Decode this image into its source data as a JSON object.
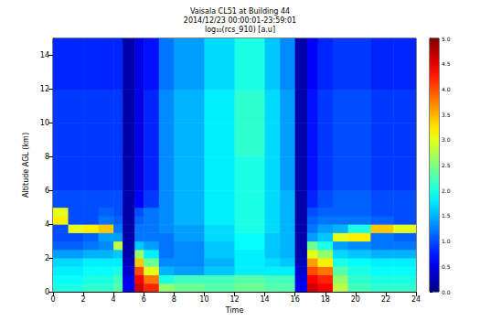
{
  "chart_data": {
    "type": "heatmap",
    "title": "Vaisala CL51 at Building 44",
    "subtitle": [
      "2014/12/23 00:00:01-23:59:01",
      "log₁₀(rcs_910) [a.u]"
    ],
    "xlabel": "Time",
    "ylabel": "Altitude AGL (km)",
    "xlim": [
      0,
      24
    ],
    "xticks": [
      0,
      2,
      4,
      6,
      8,
      10,
      12,
      14,
      16,
      18,
      20,
      22,
      24
    ],
    "ylim": [
      0,
      15
    ],
    "yticks": [
      0,
      2,
      4,
      6,
      8,
      10,
      12,
      14
    ],
    "grid": false,
    "x_edges": [
      0,
      1,
      2,
      3,
      4,
      4.6,
      5.4,
      6,
      7,
      8,
      10,
      12,
      14,
      15,
      16,
      16.8,
      17.5,
      18.5,
      19.5,
      21,
      22.5,
      24
    ],
    "y_edges": [
      0,
      0.5,
      1,
      1.5,
      2,
      2.5,
      3,
      3.5,
      4,
      4.5,
      5,
      6,
      8,
      10,
      12,
      15
    ],
    "cells": [
      [
        2.0,
        2.0,
        2.1,
        2.1,
        2.3,
        0.6,
        4.6,
        4.2,
        2.6,
        2.4,
        2.3,
        2.4,
        2.3,
        2.3,
        0.6,
        4.6,
        4.4,
        2.8,
        2.2,
        2.1,
        2.1
      ],
      [
        1.9,
        1.9,
        2.0,
        2.0,
        2.2,
        0.5,
        4.4,
        3.8,
        2.0,
        2.2,
        2.2,
        2.3,
        2.2,
        2.2,
        0.5,
        4.4,
        4.2,
        2.6,
        2.1,
        2.0,
        2.0
      ],
      [
        1.8,
        1.8,
        1.9,
        1.9,
        2.0,
        0.4,
        4.0,
        3.0,
        1.5,
        1.4,
        1.6,
        1.8,
        1.8,
        1.8,
        0.4,
        4.0,
        3.8,
        2.3,
        2.0,
        1.9,
        1.9
      ],
      [
        1.7,
        1.7,
        1.8,
        1.8,
        1.8,
        0.3,
        3.4,
        2.4,
        1.3,
        1.3,
        1.5,
        1.8,
        1.7,
        1.6,
        0.3,
        3.6,
        3.2,
        2.0,
        1.9,
        1.8,
        1.8
      ],
      [
        1.4,
        1.4,
        1.5,
        1.5,
        1.6,
        0.2,
        2.6,
        1.8,
        1.2,
        1.3,
        1.6,
        1.8,
        1.6,
        1.5,
        0.2,
        3.0,
        2.6,
        1.7,
        1.6,
        1.5,
        1.5
      ],
      [
        1.1,
        1.1,
        1.2,
        1.3,
        2.8,
        0.2,
        1.6,
        1.4,
        1.2,
        1.3,
        1.6,
        1.9,
        1.6,
        1.5,
        0.2,
        2.4,
        2.0,
        1.4,
        1.3,
        1.2,
        1.2
      ],
      [
        1.0,
        1.0,
        1.1,
        1.4,
        1.4,
        0.2,
        1.2,
        1.2,
        1.2,
        1.4,
        1.7,
        1.9,
        1.6,
        1.5,
        0.2,
        1.4,
        1.6,
        3.0,
        3.2,
        1.2,
        1.1
      ],
      [
        1.0,
        3.0,
        3.2,
        3.4,
        1.2,
        0.2,
        1.2,
        1.2,
        1.3,
        1.4,
        1.7,
        2.0,
        1.7,
        1.5,
        0.2,
        1.2,
        1.4,
        1.5,
        2.0,
        3.4,
        3.0
      ],
      [
        3.2,
        1.0,
        1.0,
        1.2,
        1.1,
        0.2,
        1.1,
        1.2,
        1.3,
        1.5,
        1.8,
        2.0,
        1.7,
        1.5,
        0.2,
        1.1,
        1.2,
        1.2,
        1.2,
        1.1,
        1.0
      ],
      [
        3.0,
        1.0,
        1.0,
        1.1,
        1.0,
        0.2,
        1.0,
        1.2,
        1.3,
        1.5,
        1.8,
        2.0,
        1.7,
        1.5,
        0.2,
        1.0,
        1.1,
        1.1,
        1.1,
        1.0,
        1.0
      ],
      [
        1.0,
        1.0,
        1.0,
        1.0,
        1.0,
        0.2,
        0.6,
        0.9,
        1.3,
        1.5,
        1.8,
        2.0,
        1.7,
        1.5,
        0.2,
        0.8,
        1.0,
        1.1,
        1.1,
        1.0,
        1.0
      ],
      [
        0.9,
        0.9,
        0.9,
        0.9,
        0.9,
        0.2,
        0.5,
        0.8,
        1.3,
        1.5,
        1.8,
        2.0,
        1.7,
        1.4,
        0.2,
        0.7,
        0.9,
        1.0,
        1.0,
        0.9,
        0.9
      ],
      [
        0.9,
        0.9,
        0.9,
        0.9,
        0.9,
        0.2,
        0.5,
        0.8,
        1.3,
        1.5,
        1.8,
        2.1,
        1.7,
        1.4,
        0.2,
        0.7,
        0.9,
        1.0,
        1.0,
        0.9,
        0.9
      ],
      [
        0.9,
        0.9,
        0.9,
        0.9,
        0.9,
        0.2,
        0.5,
        0.8,
        1.3,
        1.5,
        1.8,
        2.1,
        1.7,
        1.4,
        0.2,
        0.7,
        0.9,
        1.0,
        1.0,
        0.9,
        0.9
      ],
      [
        0.8,
        0.8,
        0.8,
        0.8,
        0.8,
        0.2,
        0.5,
        0.7,
        1.2,
        1.4,
        1.7,
        2.0,
        1.6,
        1.3,
        0.2,
        0.6,
        0.8,
        0.9,
        0.9,
        0.8,
        0.8
      ]
    ],
    "colorbar": {
      "range": [
        0,
        5
      ],
      "ticks": [
        {
          "value": 0,
          "label": "0.0"
        },
        {
          "value": 0.5,
          "label": "0.5"
        },
        {
          "value": 1,
          "label": "1.0"
        },
        {
          "value": 1.5,
          "label": "1.5"
        },
        {
          "value": 2,
          "label": "2.0"
        },
        {
          "value": 2.5,
          "label": "2.5"
        },
        {
          "value": 3,
          "label": "3.0"
        },
        {
          "value": 3.5,
          "label": "3.5"
        },
        {
          "value": 4,
          "label": "4.0"
        },
        {
          "value": 4.5,
          "label": "4.5"
        },
        {
          "value": 5,
          "label": "5.0"
        }
      ]
    }
  }
}
